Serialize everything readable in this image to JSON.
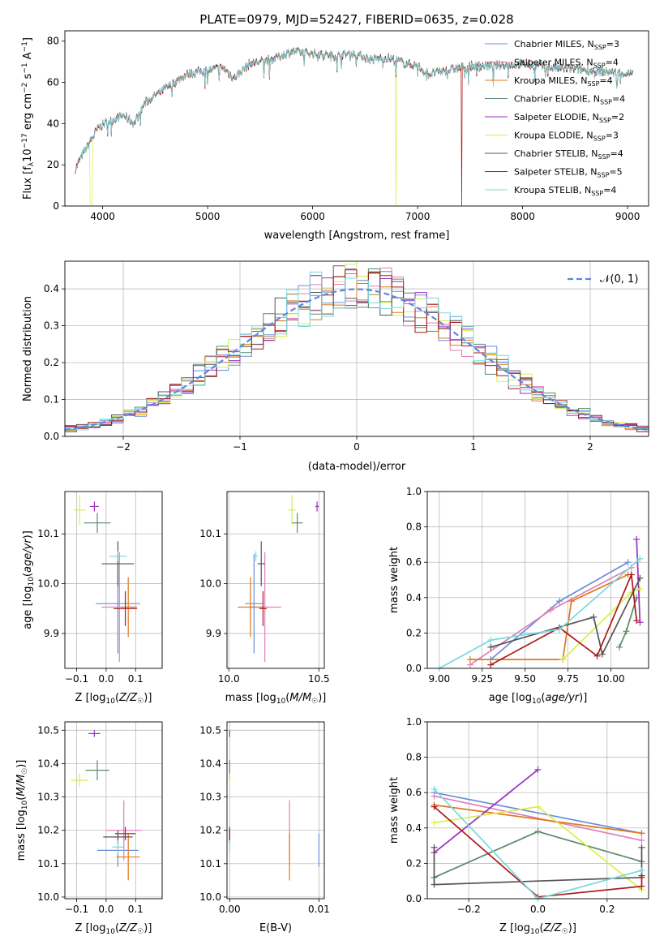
{
  "figure": {
    "title": "PLATE=0979, MJD=52427, FIBERID=0635, z=0.028"
  },
  "colors": {
    "chabrier_miles": "#6a8fd8",
    "salpeter_miles": "#e07fb8",
    "kroupa_miles": "#e0781e",
    "chabrier_elodie": "#5a8a6a",
    "salpeter_elodie": "#9a2fbf",
    "kroupa_elodie": "#d8ef48",
    "chabrier_stelib": "#555555",
    "salpeter_stelib": "#aa1a1a",
    "kroupa_stelib": "#7ad8e0",
    "normal_curve": "#5a88dd",
    "grid": "#b0b0b0"
  },
  "legend_spectrum": [
    {
      "key": "chabrier_miles",
      "text": "Chabrier MILES, N",
      "sub": "SSP",
      "suffix": "=3"
    },
    {
      "key": "salpeter_miles",
      "text": "Salpeter MILES, N",
      "sub": "SSP",
      "suffix": "=4"
    },
    {
      "key": "kroupa_miles",
      "text": "Kroupa MILES, N",
      "sub": "SSP",
      "suffix": "=4"
    },
    {
      "key": "chabrier_elodie",
      "text": "Chabrier ELODIE, N",
      "sub": "SSP",
      "suffix": "=4"
    },
    {
      "key": "salpeter_elodie",
      "text": "Salpeter ELODIE, N",
      "sub": "SSP",
      "suffix": "=2"
    },
    {
      "key": "kroupa_elodie",
      "text": "Kroupa ELODIE, N",
      "sub": "SSP",
      "suffix": "=3"
    },
    {
      "key": "chabrier_stelib",
      "text": "Chabrier STELIB, N",
      "sub": "SSP",
      "suffix": "=4"
    },
    {
      "key": "salpeter_stelib",
      "text": "Salpeter STELIB, N",
      "sub": "SSP",
      "suffix": "=5"
    },
    {
      "key": "kroupa_stelib",
      "text": "Kroupa STELIB, N",
      "sub": "SSP",
      "suffix": "=4"
    }
  ],
  "chart_data": [
    {
      "id": "spectrum",
      "type": "line",
      "xlabel": "wavelength [Angstrom, rest frame]",
      "ylabel_parts": [
        "Flux [f",
        "λ",
        "10",
        "−17",
        " erg cm",
        "−2",
        " s",
        "−1",
        " A",
        "−1",
        "]"
      ],
      "xlim": [
        3640,
        9200
      ],
      "ylim": [
        0,
        85
      ],
      "xticks": [
        4000,
        5000,
        6000,
        7000,
        8000,
        9000
      ],
      "yticks": [
        0,
        20,
        40,
        60,
        80
      ],
      "grid": false,
      "legend_position": "upper right",
      "x_range": [
        3740,
        9050
      ],
      "continuum_knots": [
        [
          3740,
          18
        ],
        [
          3820,
          26
        ],
        [
          3900,
          33
        ],
        [
          3960,
          38
        ],
        [
          4050,
          41
        ],
        [
          4200,
          44
        ],
        [
          4300,
          40
        ],
        [
          4400,
          50
        ],
        [
          4600,
          57
        ],
        [
          4800,
          64
        ],
        [
          5000,
          66
        ],
        [
          5150,
          67
        ],
        [
          5250,
          62
        ],
        [
          5400,
          69
        ],
        [
          5600,
          71
        ],
        [
          5800,
          75
        ],
        [
          6000,
          74
        ],
        [
          6200,
          73
        ],
        [
          6400,
          74
        ],
        [
          6560,
          71
        ],
        [
          6700,
          72
        ],
        [
          6900,
          69
        ],
        [
          7000,
          68
        ],
        [
          7100,
          64
        ],
        [
          7300,
          66
        ],
        [
          7500,
          68
        ],
        [
          7700,
          68
        ],
        [
          8000,
          69
        ],
        [
          8300,
          67
        ],
        [
          8600,
          66
        ],
        [
          9050,
          64
        ]
      ],
      "artifacts": [
        {
          "series": "kroupa_elodie",
          "x_start": 3880,
          "x_end": 3905
        },
        {
          "series": "kroupa_elodie",
          "x_at": 6795
        },
        {
          "series": "salpeter_stelib",
          "x_at": 7420
        }
      ]
    },
    {
      "id": "residuals",
      "type": "histogram",
      "xlabel": "(data-model)/error",
      "ylabel": "Normed distribution",
      "xlim": [
        -2.5,
        2.5
      ],
      "ylim": [
        0,
        0.475
      ],
      "xticks": [
        -2,
        -1,
        0,
        1,
        2
      ],
      "xtick_labels": [
        "−2",
        "−1",
        "0",
        "1",
        "2"
      ],
      "yticks": [
        0.0,
        0.1,
        0.2,
        0.3,
        0.4
      ],
      "ytick_labels": [
        "0.0",
        "0.1",
        "0.2",
        "0.3",
        "0.4"
      ],
      "grid": true,
      "bin_width": 0.1,
      "legend_position": "upper right",
      "legend_label": "𝒩(0, 1)",
      "reference_curve": "standard normal"
    },
    {
      "id": "age_vs_Z",
      "type": "errorbar",
      "xlabel": "Z [log10(Z/Z☉)]",
      "ylabel": "age  [log10(age/yr)]",
      "xlim": [
        -0.14,
        0.19
      ],
      "ylim": [
        9.83,
        10.185
      ],
      "xticks": [
        -0.1,
        0.0,
        0.1
      ],
      "xtick_labels": [
        "−0.1",
        "0.0",
        "0.1"
      ],
      "yticks": [
        9.9,
        10.0,
        10.1
      ],
      "ytick_labels": [
        "9.9",
        "10.0",
        "10.1"
      ],
      "grid": true,
      "points": [
        {
          "key": "chabrier_miles",
          "x": 0.04,
          "xerr": 0.075,
          "y": 9.96,
          "yerr": 0.1
        },
        {
          "key": "salpeter_miles",
          "x": 0.045,
          "xerr": 0.06,
          "y": 9.953,
          "yerr": 0.11
        },
        {
          "key": "kroupa_miles",
          "x": 0.075,
          "xerr": 0.025,
          "y": 9.953,
          "yerr": 0.06
        },
        {
          "key": "chabrier_elodie",
          "x": -0.03,
          "xerr": 0.045,
          "y": 10.122,
          "yerr": 0.02
        },
        {
          "key": "salpeter_elodie",
          "x": -0.04,
          "xerr": 0.015,
          "y": 10.155,
          "yerr": 0.01
        },
        {
          "key": "kroupa_elodie",
          "x": -0.09,
          "xerr": 0.02,
          "y": 10.148,
          "yerr": 0.03
        },
        {
          "key": "chabrier_stelib",
          "x": 0.04,
          "xerr": 0.055,
          "y": 10.04,
          "yerr": 0.045
        },
        {
          "key": "salpeter_stelib",
          "x": 0.065,
          "xerr": 0.04,
          "y": 9.95,
          "yerr": 0.035
        },
        {
          "key": "kroupa_stelib",
          "x": 0.04,
          "xerr": 0.03,
          "y": 10.055,
          "yerr": 0.01
        }
      ]
    },
    {
      "id": "age_vs_mass",
      "type": "errorbar",
      "xlabel": "mass [log10(M/M☉)]",
      "ylabel": "",
      "xlim": [
        9.99,
        10.53
      ],
      "ylim": [
        9.83,
        10.185
      ],
      "xticks": [
        10.0,
        10.5
      ],
      "xtick_labels": [
        "10.0",
        "10.5"
      ],
      "yticks": [
        9.9,
        10.0,
        10.1
      ],
      "ytick_labels": [
        "9.9",
        "10.0",
        "10.1"
      ],
      "grid": true,
      "points": [
        {
          "key": "chabrier_miles",
          "x": 10.14,
          "xerr": 0.05,
          "y": 9.96,
          "yerr": 0.1
        },
        {
          "key": "salpeter_miles",
          "x": 10.2,
          "xerr": 0.09,
          "y": 9.953,
          "yerr": 0.11
        },
        {
          "key": "kroupa_miles",
          "x": 10.12,
          "xerr": 0.07,
          "y": 9.953,
          "yerr": 0.06
        },
        {
          "key": "chabrier_elodie",
          "x": 10.38,
          "xerr": 0.03,
          "y": 10.122,
          "yerr": 0.02
        },
        {
          "key": "salpeter_elodie",
          "x": 10.49,
          "xerr": 0.01,
          "y": 10.155,
          "yerr": 0.01
        },
        {
          "key": "kroupa_elodie",
          "x": 10.35,
          "xerr": 0.02,
          "y": 10.148,
          "yerr": 0.03
        },
        {
          "key": "chabrier_stelib",
          "x": 10.18,
          "xerr": 0.02,
          "y": 10.04,
          "yerr": 0.045
        },
        {
          "key": "salpeter_stelib",
          "x": 10.19,
          "xerr": 0.02,
          "y": 9.95,
          "yerr": 0.035
        },
        {
          "key": "kroupa_stelib",
          "x": 10.15,
          "xerr": 0.01,
          "y": 10.055,
          "yerr": 0.01
        }
      ]
    },
    {
      "id": "mass_weight_vs_age",
      "type": "line",
      "xlabel": "age  [log10(age/yr)]",
      "ylabel": "mass weight",
      "xlim": [
        8.93,
        10.22
      ],
      "ylim": [
        0.0,
        1.0
      ],
      "xticks": [
        9.0,
        9.25,
        9.5,
        9.75,
        10.0
      ],
      "xtick_labels": [
        "9.00",
        "9.25",
        "9.50",
        "9.75",
        "10.00"
      ],
      "yticks": [
        0.0,
        0.2,
        0.4,
        0.6,
        0.8,
        1.0
      ],
      "ytick_labels": [
        "0.0",
        "0.2",
        "0.4",
        "0.6",
        "0.8",
        "1.0"
      ],
      "grid": true,
      "series": [
        {
          "key": "chabrier_miles",
          "points": [
            [
              9.3,
              0.05
            ],
            [
              9.7,
              0.38
            ],
            [
              10.1,
              0.6
            ]
          ]
        },
        {
          "key": "salpeter_miles",
          "points": [
            [
              9.18,
              0.02
            ],
            [
              9.65,
              0.33
            ],
            [
              10.12,
              0.57
            ]
          ]
        },
        {
          "key": "kroupa_miles",
          "points": [
            [
              9.18,
              0.05
            ],
            [
              9.72,
              0.05
            ],
            [
              9.77,
              0.38
            ],
            [
              10.1,
              0.53
            ]
          ]
        },
        {
          "key": "chabrier_elodie",
          "points": [
            [
              10.05,
              0.12
            ],
            [
              10.09,
              0.21
            ],
            [
              10.15,
              0.4
            ]
          ]
        },
        {
          "key": "salpeter_elodie",
          "points": [
            [
              10.15,
              0.73
            ],
            [
              10.17,
              0.26
            ]
          ]
        },
        {
          "key": "kroupa_elodie",
          "points": [
            [
              9.72,
              0.05
            ],
            [
              10.12,
              0.43
            ],
            [
              10.17,
              0.45
            ]
          ]
        },
        {
          "key": "chabrier_stelib",
          "points": [
            [
              9.3,
              0.12
            ],
            [
              9.9,
              0.29
            ],
            [
              9.95,
              0.08
            ],
            [
              10.17,
              0.51
            ]
          ]
        },
        {
          "key": "salpeter_stelib",
          "points": [
            [
              9.3,
              0.02
            ],
            [
              9.7,
              0.23
            ],
            [
              9.92,
              0.07
            ],
            [
              10.12,
              0.53
            ],
            [
              10.15,
              0.27
            ]
          ]
        },
        {
          "key": "kroupa_stelib",
          "points": [
            [
              9.0,
              0.0
            ],
            [
              9.3,
              0.16
            ],
            [
              9.7,
              0.22
            ],
            [
              10.17,
              0.62
            ]
          ]
        }
      ]
    },
    {
      "id": "mass_vs_Z",
      "type": "errorbar",
      "xlabel": "Z [log10(Z/Z☉)]",
      "ylabel": "mass [log10(M/M☉)]",
      "xlim": [
        -0.14,
        0.19
      ],
      "ylim": [
        9.995,
        10.525
      ],
      "xticks": [
        -0.1,
        0.0,
        0.1
      ],
      "xtick_labels": [
        "−0.1",
        "0.0",
        "0.1"
      ],
      "yticks": [
        10.0,
        10.1,
        10.2,
        10.3,
        10.4,
        10.5
      ],
      "ytick_labels": [
        "10.0",
        "10.1",
        "10.2",
        "10.3",
        "10.4",
        "10.5"
      ],
      "grid": true,
      "points": [
        {
          "key": "chabrier_miles",
          "x": 0.04,
          "xerr": 0.07,
          "y": 10.14,
          "yerr": 0.05
        },
        {
          "key": "salpeter_miles",
          "x": 0.06,
          "xerr": 0.06,
          "y": 10.2,
          "yerr": 0.09
        },
        {
          "key": "kroupa_miles",
          "x": 0.075,
          "xerr": 0.04,
          "y": 10.12,
          "yerr": 0.07
        },
        {
          "key": "chabrier_elodie",
          "x": -0.03,
          "xerr": 0.04,
          "y": 10.38,
          "yerr": 0.03
        },
        {
          "key": "salpeter_elodie",
          "x": -0.04,
          "xerr": 0.02,
          "y": 10.49,
          "yerr": 0.01
        },
        {
          "key": "kroupa_elodie",
          "x": -0.09,
          "xerr": 0.03,
          "y": 10.35,
          "yerr": 0.02
        },
        {
          "key": "chabrier_stelib",
          "x": 0.04,
          "xerr": 0.05,
          "y": 10.18,
          "yerr": 0.02
        },
        {
          "key": "salpeter_stelib",
          "x": 0.065,
          "xerr": 0.035,
          "y": 10.19,
          "yerr": 0.02
        },
        {
          "key": "kroupa_stelib",
          "x": 0.04,
          "xerr": 0.02,
          "y": 10.15,
          "yerr": 0.02
        }
      ]
    },
    {
      "id": "mass_vs_ebv",
      "type": "errorbar",
      "xlabel": "E(B-V)",
      "ylabel": "",
      "xlim": [
        -0.0003,
        0.0106
      ],
      "ylim": [
        9.995,
        10.525
      ],
      "xticks": [
        0.0,
        0.01
      ],
      "xtick_labels": [
        "0.00",
        "0.01"
      ],
      "yticks": [
        10.0,
        10.1,
        10.2,
        10.3,
        10.4,
        10.5
      ],
      "ytick_labels": [
        "10.0",
        "10.1",
        "10.2",
        "10.3",
        "10.4",
        "10.5"
      ],
      "grid": true,
      "points": [
        {
          "key": "chabrier_miles",
          "x": 0.01,
          "xerr": 0.0,
          "y": 10.14,
          "yerr": 0.05
        },
        {
          "key": "salpeter_miles",
          "x": 0.0067,
          "xerr": 0.0,
          "y": 10.2,
          "yerr": 0.09
        },
        {
          "key": "kroupa_miles",
          "x": 0.0067,
          "xerr": 0.0,
          "y": 10.12,
          "yerr": 0.07
        },
        {
          "key": "chabrier_elodie",
          "x": 0.0,
          "xerr": 0.0,
          "y": 10.38,
          "yerr": 0.03
        },
        {
          "key": "salpeter_elodie",
          "x": 0.0,
          "xerr": 0.0,
          "y": 10.49,
          "yerr": 0.01
        },
        {
          "key": "kroupa_elodie",
          "x": 0.0,
          "xerr": 0.0,
          "y": 10.35,
          "yerr": 0.02
        },
        {
          "key": "chabrier_stelib",
          "x": 0.0,
          "xerr": 0.0,
          "y": 10.18,
          "yerr": 0.02
        },
        {
          "key": "salpeter_stelib",
          "x": 0.0,
          "xerr": 0.0,
          "y": 10.19,
          "yerr": 0.02
        },
        {
          "key": "kroupa_stelib",
          "x": 0.0,
          "xerr": 0.0,
          "y": 10.15,
          "yerr": 0.02
        }
      ]
    },
    {
      "id": "mass_weight_vs_Z",
      "type": "line",
      "xlabel": "Z [log10(Z/Z☉)]",
      "ylabel": "mass weight",
      "xlim": [
        -0.32,
        0.32
      ],
      "ylim": [
        0.0,
        1.0
      ],
      "xticks": [
        -0.2,
        0.0,
        0.2
      ],
      "xtick_labels": [
        "−0.2",
        "0.0",
        "0.2"
      ],
      "yticks": [
        0.0,
        0.2,
        0.4,
        0.6,
        0.8,
        1.0
      ],
      "ytick_labels": [
        "0.0",
        "0.2",
        "0.4",
        "0.6",
        "0.8",
        "1.0"
      ],
      "grid": true,
      "series": [
        {
          "key": "chabrier_miles",
          "points": [
            [
              -0.3,
              0.6
            ],
            [
              0.3,
              0.37
            ]
          ]
        },
        {
          "key": "salpeter_miles",
          "points": [
            [
              -0.3,
              0.58
            ],
            [
              0.3,
              0.33
            ]
          ]
        },
        {
          "key": "kroupa_miles",
          "points": [
            [
              -0.3,
              0.53
            ],
            [
              0.3,
              0.37
            ]
          ]
        },
        {
          "key": "chabrier_elodie",
          "points": [
            [
              -0.3,
              0.12
            ],
            [
              0.0,
              0.38
            ],
            [
              0.3,
              0.21
            ]
          ]
        },
        {
          "key": "salpeter_elodie",
          "points": [
            [
              -0.3,
              0.26
            ],
            [
              0.0,
              0.73
            ]
          ]
        },
        {
          "key": "kroupa_elodie",
          "points": [
            [
              -0.3,
              0.43
            ],
            [
              0.0,
              0.52
            ],
            [
              0.3,
              0.05
            ]
          ]
        },
        {
          "key": "chabrier_stelib",
          "points": [
            [
              -0.3,
              0.29
            ],
            [
              -0.3,
              0.08
            ],
            [
              0.3,
              0.12
            ],
            [
              0.3,
              0.29
            ]
          ]
        },
        {
          "key": "salpeter_stelib",
          "points": [
            [
              -0.3,
              0.52
            ],
            [
              0.0,
              0.01
            ],
            [
              0.3,
              0.07
            ],
            [
              0.3,
              0.13
            ]
          ]
        },
        {
          "key": "kroupa_stelib",
          "points": [
            [
              -0.3,
              0.62
            ],
            [
              0.0,
              0.0
            ],
            [
              0.3,
              0.16
            ]
          ]
        }
      ]
    }
  ]
}
